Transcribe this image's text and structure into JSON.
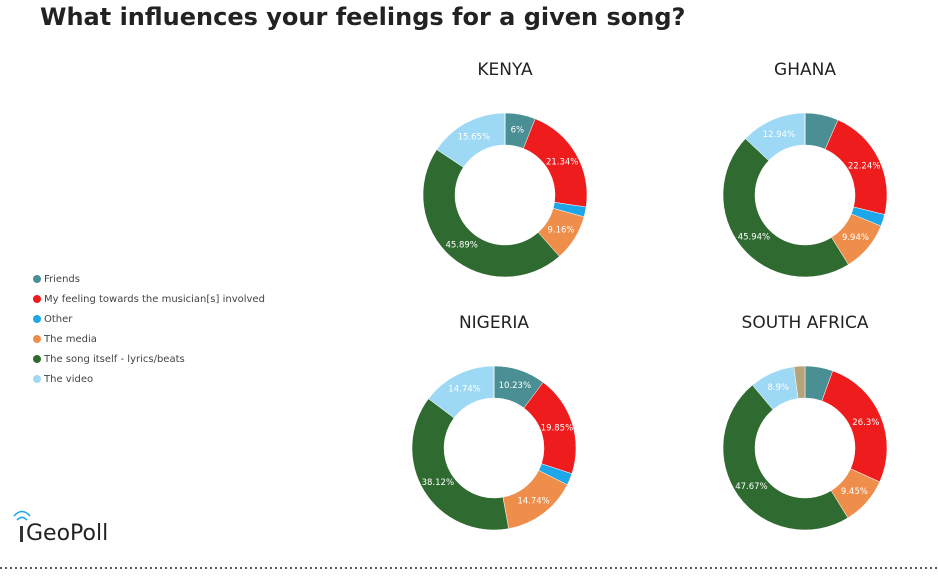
{
  "title": "What influences your feelings for a given song?",
  "brand": "GeoPoll",
  "legend": {
    "categories": [
      "Friends",
      "My feeling towards the musician[s] involved",
      "Other",
      "The media",
      "The song itself - lyrics/beats",
      "The video",
      null
    ],
    "colors": [
      "#4a8f94",
      "#ee1c1c",
      "#1ea7e8",
      "#ef8e4a",
      "#2f6b30",
      "#9dd9f5",
      "#b5a47a"
    ]
  },
  "chart_data": [
    {
      "type": "pie",
      "title": "KENYA",
      "values": [
        6,
        21.34,
        1.96,
        9.16,
        45.89,
        15.65,
        0
      ],
      "value_labels": [
        "6%",
        "21.34%",
        null,
        "9.16%",
        "45.89%",
        "15.65%",
        null
      ]
    },
    {
      "type": "pie",
      "title": "GHANA",
      "values": [
        6.6,
        22.24,
        2.34,
        9.94,
        45.94,
        12.94,
        0
      ],
      "value_labels": [
        null,
        "22.24%",
        null,
        "9.94%",
        "45.94%",
        "12.94%",
        null
      ]
    },
    {
      "type": "pie",
      "title": "NIGERIA",
      "values": [
        10.23,
        19.85,
        2.32,
        14.74,
        38.12,
        14.74,
        0
      ],
      "value_labels": [
        "10.23%",
        "19.85%",
        null,
        "14.74%",
        "38.12%",
        "14.74%",
        null
      ]
    },
    {
      "type": "pie",
      "title": "SOUTH AFRICA",
      "values": [
        5.5,
        26.3,
        0,
        9.45,
        47.67,
        8.9,
        2.18
      ],
      "value_labels": [
        null,
        "26.3%",
        null,
        "9.45%",
        "47.67%",
        "8.9%",
        null
      ]
    }
  ]
}
